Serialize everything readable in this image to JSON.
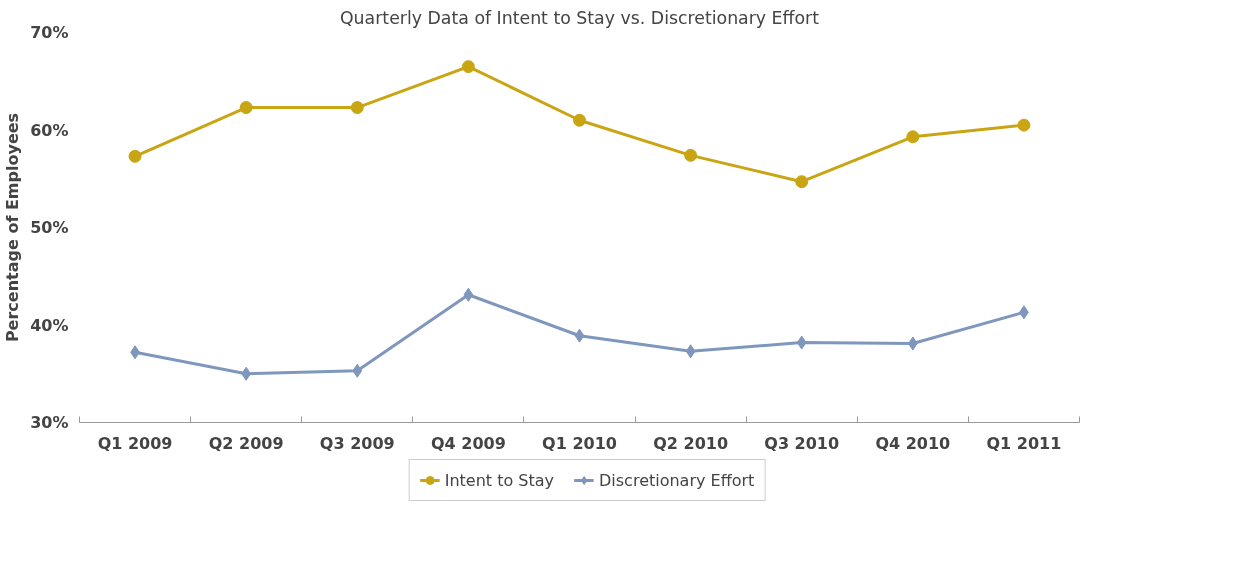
{
  "chart_data": {
    "type": "line",
    "title": "Quarterly Data of Intent to Stay vs. Discretionary Effort",
    "ylabel": "Percentage of Employees",
    "categories": [
      "Q1 2009",
      "Q2 2009",
      "Q3 2009",
      "Q4 2009",
      "Q1 2010",
      "Q2 2010",
      "Q3 2010",
      "Q4 2010",
      "Q1 2011"
    ],
    "series": [
      {
        "name": "Intent to Stay",
        "color": "#c9a514",
        "marker": "circle",
        "values": [
          57.3,
          62.3,
          62.3,
          66.5,
          61.0,
          57.4,
          54.7,
          59.3,
          60.5
        ]
      },
      {
        "name": "Discretionary Effort",
        "color": "#7f97bd",
        "marker": "diamond",
        "values": [
          37.2,
          35.0,
          35.3,
          43.1,
          38.9,
          37.3,
          38.2,
          38.1,
          41.3
        ]
      }
    ],
    "ylim": [
      30,
      70
    ],
    "yticks": [
      {
        "value": 30,
        "label": "30%"
      },
      {
        "value": 40,
        "label": "40%"
      },
      {
        "value": 50,
        "label": "50%"
      },
      {
        "value": 60,
        "label": "60%"
      },
      {
        "value": 70,
        "label": "70%"
      }
    ],
    "grid": false,
    "legend": "bottom"
  }
}
